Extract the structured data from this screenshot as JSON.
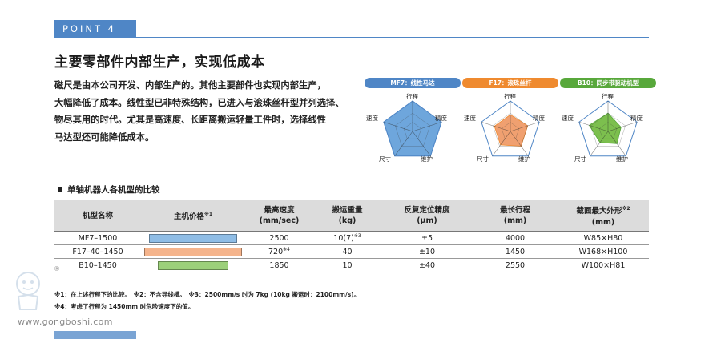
{
  "point": {
    "label": "POINT 4"
  },
  "headline": "主要零部件内部生产，实现低成本",
  "body_lines": [
    "磁尺是由本公司开发、内部生产的。其他主要部件也实现内部生产，",
    "大幅降低了成本。线性型已非特殊结构，已进入与滚珠丝杆型并列选择、",
    "物尽其用的时代。尤其是高速度、长距离搬运轻量工件时，选择线性",
    "马达型还可能降低成本。"
  ],
  "radars": [
    {
      "title": "MF7：线性马达",
      "color": "#4f86c6",
      "fill": "#6ea6dc",
      "axis_labels": [
        "行程",
        "精度",
        "维护",
        "尺寸",
        "速度"
      ],
      "values": [
        1,
        1,
        1,
        1,
        1
      ]
    },
    {
      "title": "F17：滚珠丝杆",
      "color": "#ef8a2f",
      "fill": "#f0a070",
      "axis_labels": [
        "行程",
        "精度",
        "维护",
        "尺寸",
        "速度"
      ],
      "values": [
        0.55,
        0.6,
        0.6,
        0.55,
        0.55
      ]
    },
    {
      "title": "B10：同步带驱动机型",
      "color": "#58a83b",
      "fill": "#7cbf4e",
      "axis_labels": [
        "行程",
        "精度",
        "维护",
        "尺寸",
        "速度"
      ],
      "values": [
        0.6,
        0.45,
        0.5,
        0.45,
        0.65
      ]
    }
  ],
  "compare": {
    "title": "单轴机器人各机型的比较",
    "headers": [
      [
        "机型名称"
      ],
      [
        "主机价格",
        "※1"
      ],
      [
        "最高速度",
        "(mm/sec)"
      ],
      [
        "搬运重量",
        "(kg)"
      ],
      [
        "反复定位精度",
        "(μm)"
      ],
      [
        "最长行程",
        "(mm)"
      ],
      [
        "截面最大外形",
        "※2",
        "(mm)"
      ]
    ],
    "rows": [
      {
        "model": "MF7–1500",
        "price_level": 0.9,
        "price_color": "#8fbde6",
        "speed": "2500",
        "payload": "10(7)",
        "payload_note": "※3",
        "accuracy": "±5",
        "stroke": "4000",
        "section": "W85×H80"
      },
      {
        "model": "F17–40–1450",
        "price_level": 1.0,
        "price_color": "#f5b48c",
        "speed": "720",
        "speed_note": "※4",
        "payload": "40",
        "accuracy": "±10",
        "stroke": "1450",
        "section": "W168×H100"
      },
      {
        "model": "B10–1450",
        "price_level": 0.72,
        "price_color": "#9cd07a",
        "speed": "1850",
        "payload": "10",
        "accuracy": "±40",
        "stroke": "2550",
        "section": "W100×H81"
      }
    ]
  },
  "footnotes": [
    "※1：在上述行程下的比较。　※2：不含导线槽。　※3：2500mm/s 时为 7kg (10kg 搬运时：2100mm/s)。",
    "※4：考虑了行程为 1450mm 时危险速度下的值。"
  ],
  "watermark": {
    "url": "www.gongboshi.com",
    "reg": "®"
  }
}
